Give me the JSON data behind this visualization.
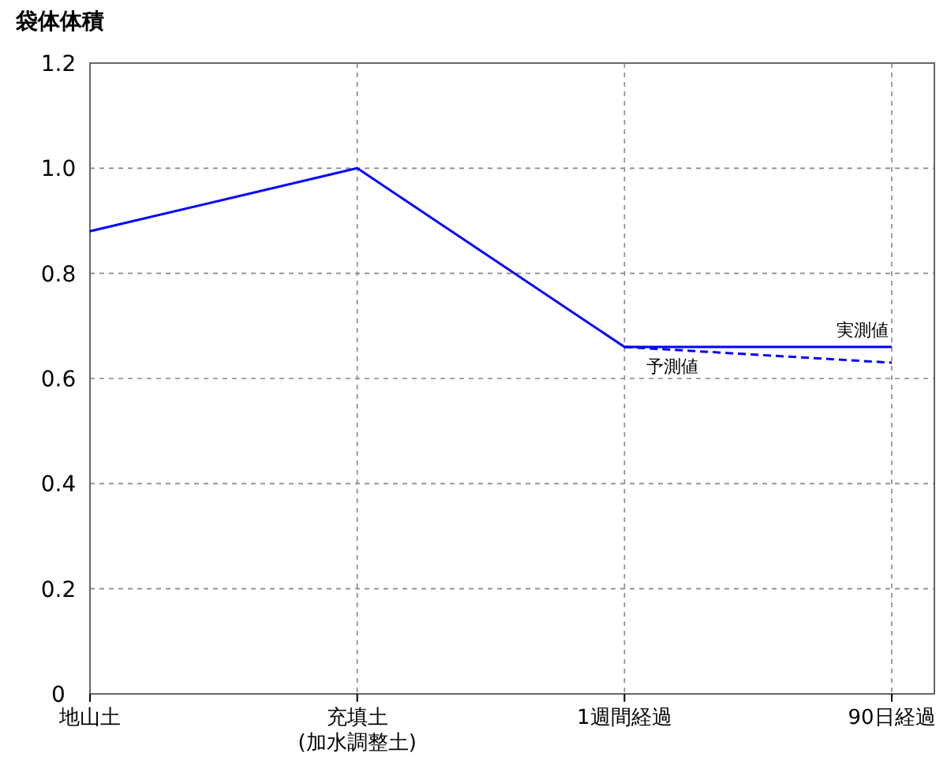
{
  "chart_data": {
    "type": "line",
    "ylabel": "袋体体積",
    "categories": [
      "地山土",
      "充填土\n(加水調整土)",
      "1週間経過",
      "90日経過"
    ],
    "series": [
      {
        "name": "実測値",
        "color": "#0000ff",
        "values": [
          0.88,
          1.0,
          0.66,
          0.66
        ],
        "line_style": "solid"
      },
      {
        "name": "予測値",
        "color": "#0000ff",
        "values": [
          null,
          null,
          0.66,
          0.63
        ],
        "line_style": "dashed"
      }
    ],
    "ylim": [
      0,
      1.2
    ],
    "yticks": [
      0,
      {
        "value": 0.2,
        "label": "0.2"
      },
      {
        "value": 0.4,
        "label": "0.4"
      },
      {
        "value": 0.6,
        "label": "0.6"
      },
      {
        "value": 0.8,
        "label": "0.8"
      },
      {
        "value": 1,
        "label": "1.0"
      },
      1.2
    ],
    "grid": true,
    "legend": false,
    "marker": "none"
  }
}
